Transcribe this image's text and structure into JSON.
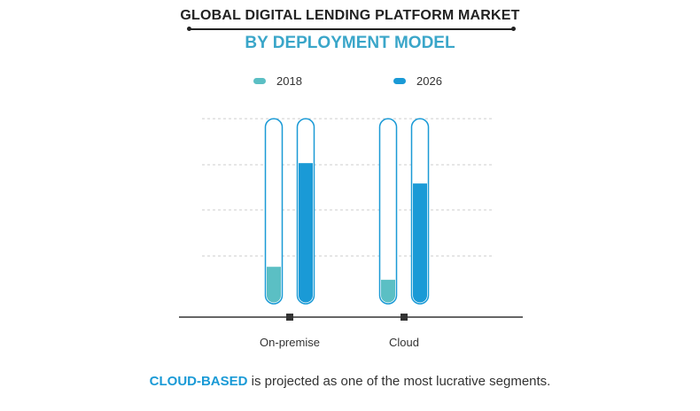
{
  "chart_data": {
    "type": "bar",
    "title": "GLOBAL DIGITAL LENDING PLATFORM MARKET",
    "subtitle": "BY DEPLOYMENT MODEL",
    "categories": [
      "On-premise",
      "Cloud"
    ],
    "series": [
      {
        "name": "2018",
        "values": [
          20,
          13
        ],
        "color": "#5bbfc4"
      },
      {
        "name": "2026",
        "values": [
          76,
          65
        ],
        "color": "#1a9ad6"
      }
    ],
    "ylim": [
      0,
      100
    ],
    "grid": true,
    "legend_position": "top"
  },
  "footer": {
    "highlight": "CLOUD-BASED",
    "text": " is projected as one of the most lucrative segments."
  },
  "colors": {
    "title": "#222222",
    "subtitle": "#3aa6c9",
    "tube_border": "#1a9ad6",
    "gridline": "#cccccc",
    "axis": "#333333"
  }
}
